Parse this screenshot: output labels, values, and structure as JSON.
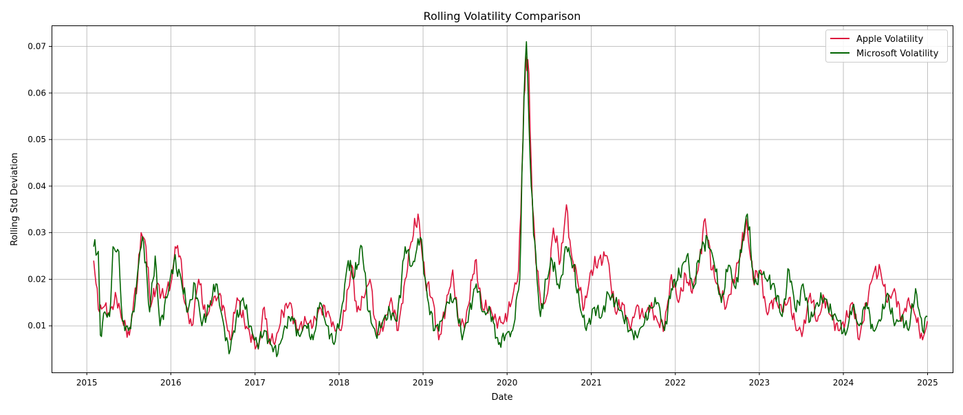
{
  "chart_data": {
    "type": "line",
    "title": "Rolling Volatility Comparison",
    "xlabel": "Date",
    "ylabel": "Rolling Std Deviation",
    "xlim": [
      "2014-08-01",
      "2025-04-20"
    ],
    "ylim": [
      0.0,
      0.0745
    ],
    "x_ticks": [
      "2015",
      "2016",
      "2017",
      "2018",
      "2019",
      "2020",
      "2021",
      "2022",
      "2023",
      "2024",
      "2025"
    ],
    "y_ticks": [
      "0.01",
      "0.02",
      "0.03",
      "0.04",
      "0.05",
      "0.06",
      "0.07"
    ],
    "grid": true,
    "legend_position": "upper right",
    "series": [
      {
        "name": "Apple Volatility",
        "color": "#DC143C",
        "points": [
          [
            "2015-01-31",
            0.024
          ],
          [
            "2015-02-10",
            0.019
          ],
          [
            "2015-02-25",
            0.013
          ],
          [
            "2015-03-15",
            0.014
          ],
          [
            "2015-04-10",
            0.013
          ],
          [
            "2015-05-10",
            0.016
          ],
          [
            "2015-06-05",
            0.011
          ],
          [
            "2015-07-05",
            0.008
          ],
          [
            "2015-07-25",
            0.016
          ],
          [
            "2015-08-10",
            0.02
          ],
          [
            "2015-08-25",
            0.03
          ],
          [
            "2015-09-15",
            0.027
          ],
          [
            "2015-10-05",
            0.014
          ],
          [
            "2015-11-01",
            0.019
          ],
          [
            "2015-12-01",
            0.016
          ],
          [
            "2016-01-05",
            0.02
          ],
          [
            "2016-01-20",
            0.027
          ],
          [
            "2016-02-10",
            0.025
          ],
          [
            "2016-03-01",
            0.015
          ],
          [
            "2016-04-01",
            0.01
          ],
          [
            "2016-05-01",
            0.02
          ],
          [
            "2016-06-01",
            0.012
          ],
          [
            "2016-07-01",
            0.015
          ],
          [
            "2016-08-01",
            0.017
          ],
          [
            "2016-08-25",
            0.012
          ],
          [
            "2016-09-15",
            0.007
          ],
          [
            "2016-10-15",
            0.016
          ],
          [
            "2016-11-15",
            0.011
          ],
          [
            "2016-12-10",
            0.008
          ],
          [
            "2017-01-15",
            0.005
          ],
          [
            "2017-02-10",
            0.014
          ],
          [
            "2017-03-01",
            0.007
          ],
          [
            "2017-04-01",
            0.007
          ],
          [
            "2017-05-01",
            0.013
          ],
          [
            "2017-06-01",
            0.015
          ],
          [
            "2017-07-01",
            0.009
          ],
          [
            "2017-08-10",
            0.011
          ],
          [
            "2017-09-10",
            0.01
          ],
          [
            "2017-10-10",
            0.014
          ],
          [
            "2017-11-10",
            0.013
          ],
          [
            "2017-12-10",
            0.01
          ],
          [
            "2018-01-10",
            0.009
          ],
          [
            "2018-02-10",
            0.018
          ],
          [
            "2018-02-25",
            0.023
          ],
          [
            "2018-03-20",
            0.013
          ],
          [
            "2018-04-20",
            0.016
          ],
          [
            "2018-05-15",
            0.02
          ],
          [
            "2018-06-15",
            0.008
          ],
          [
            "2018-07-15",
            0.01
          ],
          [
            "2018-08-15",
            0.016
          ],
          [
            "2018-09-15",
            0.009
          ],
          [
            "2018-10-15",
            0.02
          ],
          [
            "2018-11-10",
            0.028
          ],
          [
            "2018-12-10",
            0.034
          ],
          [
            "2019-01-10",
            0.02
          ],
          [
            "2019-02-10",
            0.016
          ],
          [
            "2019-03-10",
            0.007
          ],
          [
            "2019-04-10",
            0.014
          ],
          [
            "2019-05-10",
            0.022
          ],
          [
            "2019-06-05",
            0.01
          ],
          [
            "2019-07-05",
            0.011
          ],
          [
            "2019-08-15",
            0.024
          ],
          [
            "2019-09-15",
            0.014
          ],
          [
            "2019-10-15",
            0.014
          ],
          [
            "2019-11-15",
            0.011
          ],
          [
            "2019-12-20",
            0.011
          ],
          [
            "2020-01-20",
            0.015
          ],
          [
            "2020-02-20",
            0.022
          ],
          [
            "2020-03-10",
            0.05
          ],
          [
            "2020-03-22",
            0.068
          ],
          [
            "2020-04-05",
            0.064
          ],
          [
            "2020-04-20",
            0.036
          ],
          [
            "2020-05-10",
            0.022
          ],
          [
            "2020-06-01",
            0.014
          ],
          [
            "2020-06-25",
            0.017
          ],
          [
            "2020-07-20",
            0.031
          ],
          [
            "2020-08-20",
            0.024
          ],
          [
            "2020-09-15",
            0.036
          ],
          [
            "2020-10-05",
            0.026
          ],
          [
            "2020-11-01",
            0.02
          ],
          [
            "2020-12-01",
            0.014
          ],
          [
            "2021-01-01",
            0.022
          ],
          [
            "2021-02-01",
            0.024
          ],
          [
            "2021-03-10",
            0.025
          ],
          [
            "2021-04-15",
            0.013
          ],
          [
            "2021-05-15",
            0.015
          ],
          [
            "2021-06-20",
            0.009
          ],
          [
            "2021-07-15",
            0.014
          ],
          [
            "2021-08-15",
            0.012
          ],
          [
            "2021-09-15",
            0.014
          ],
          [
            "2021-10-15",
            0.011
          ],
          [
            "2021-11-15",
            0.01
          ],
          [
            "2021-12-15",
            0.021
          ],
          [
            "2022-01-15",
            0.015
          ],
          [
            "2022-02-15",
            0.021
          ],
          [
            "2022-03-15",
            0.017
          ],
          [
            "2022-04-15",
            0.024
          ],
          [
            "2022-05-10",
            0.033
          ],
          [
            "2022-06-10",
            0.022
          ],
          [
            "2022-07-10",
            0.018
          ],
          [
            "2022-08-10",
            0.014
          ],
          [
            "2022-09-10",
            0.02
          ],
          [
            "2022-10-10",
            0.025
          ],
          [
            "2022-11-05",
            0.033
          ],
          [
            "2022-12-05",
            0.02
          ],
          [
            "2023-01-05",
            0.022
          ],
          [
            "2023-02-01",
            0.013
          ],
          [
            "2023-03-10",
            0.016
          ],
          [
            "2023-04-10",
            0.013
          ],
          [
            "2023-05-10",
            0.016
          ],
          [
            "2023-06-10",
            0.009
          ],
          [
            "2023-07-10",
            0.009
          ],
          [
            "2023-08-10",
            0.017
          ],
          [
            "2023-09-10",
            0.011
          ],
          [
            "2023-10-10",
            0.016
          ],
          [
            "2023-11-10",
            0.012
          ],
          [
            "2023-12-10",
            0.009
          ],
          [
            "2024-01-10",
            0.011
          ],
          [
            "2024-02-10",
            0.015
          ],
          [
            "2024-03-10",
            0.007
          ],
          [
            "2024-04-10",
            0.015
          ],
          [
            "2024-05-10",
            0.021
          ],
          [
            "2024-06-10",
            0.022
          ],
          [
            "2024-07-10",
            0.015
          ],
          [
            "2024-08-10",
            0.018
          ],
          [
            "2024-09-10",
            0.011
          ],
          [
            "2024-10-10",
            0.016
          ],
          [
            "2024-11-10",
            0.012
          ],
          [
            "2024-12-10",
            0.007
          ],
          [
            "2024-12-31",
            0.011
          ]
        ]
      },
      {
        "name": "Microsoft Volatility",
        "color": "#006400",
        "points": [
          [
            "2015-01-31",
            0.027
          ],
          [
            "2015-02-20",
            0.026
          ],
          [
            "2015-03-01",
            0.008
          ],
          [
            "2015-03-20",
            0.013
          ],
          [
            "2015-04-10",
            0.012
          ],
          [
            "2015-04-25",
            0.027
          ],
          [
            "2015-05-20",
            0.026
          ],
          [
            "2015-06-05",
            0.011
          ],
          [
            "2015-07-01",
            0.009
          ],
          [
            "2015-07-25",
            0.013
          ],
          [
            "2015-08-20",
            0.026
          ],
          [
            "2015-09-05",
            0.028
          ],
          [
            "2015-10-01",
            0.013
          ],
          [
            "2015-10-25",
            0.025
          ],
          [
            "2015-11-15",
            0.01
          ],
          [
            "2015-12-15",
            0.016
          ],
          [
            "2016-01-15",
            0.024
          ],
          [
            "2016-02-15",
            0.02
          ],
          [
            "2016-03-15",
            0.013
          ],
          [
            "2016-04-15",
            0.019
          ],
          [
            "2016-05-15",
            0.01
          ],
          [
            "2016-06-15",
            0.014
          ],
          [
            "2016-07-15",
            0.019
          ],
          [
            "2016-08-15",
            0.011
          ],
          [
            "2016-09-10",
            0.004
          ],
          [
            "2016-10-10",
            0.011
          ],
          [
            "2016-11-10",
            0.016
          ],
          [
            "2016-12-10",
            0.01
          ],
          [
            "2017-01-10",
            0.006
          ],
          [
            "2017-02-10",
            0.009
          ],
          [
            "2017-03-10",
            0.006
          ],
          [
            "2017-04-10",
            0.004
          ],
          [
            "2017-05-10",
            0.01
          ],
          [
            "2017-06-10",
            0.012
          ],
          [
            "2017-07-10",
            0.008
          ],
          [
            "2017-08-10",
            0.01
          ],
          [
            "2017-09-10",
            0.007
          ],
          [
            "2017-10-10",
            0.015
          ],
          [
            "2017-11-10",
            0.01
          ],
          [
            "2017-12-10",
            0.006
          ],
          [
            "2018-01-10",
            0.013
          ],
          [
            "2018-02-10",
            0.024
          ],
          [
            "2018-03-05",
            0.02
          ],
          [
            "2018-04-10",
            0.027
          ],
          [
            "2018-05-10",
            0.013
          ],
          [
            "2018-06-10",
            0.008
          ],
          [
            "2018-07-10",
            0.011
          ],
          [
            "2018-08-10",
            0.013
          ],
          [
            "2018-09-10",
            0.011
          ],
          [
            "2018-10-15",
            0.027
          ],
          [
            "2018-11-15",
            0.023
          ],
          [
            "2018-12-20",
            0.029
          ],
          [
            "2019-01-20",
            0.016
          ],
          [
            "2019-02-20",
            0.009
          ],
          [
            "2019-03-20",
            0.011
          ],
          [
            "2019-04-20",
            0.015
          ],
          [
            "2019-05-20",
            0.016
          ],
          [
            "2019-06-20",
            0.007
          ],
          [
            "2019-07-20",
            0.013
          ],
          [
            "2019-08-20",
            0.019
          ],
          [
            "2019-09-20",
            0.013
          ],
          [
            "2019-10-20",
            0.013
          ],
          [
            "2019-11-25",
            0.006
          ],
          [
            "2019-12-25",
            0.008
          ],
          [
            "2020-01-25",
            0.009
          ],
          [
            "2020-02-25",
            0.02
          ],
          [
            "2020-03-15",
            0.06
          ],
          [
            "2020-03-25",
            0.071
          ],
          [
            "2020-04-15",
            0.04
          ],
          [
            "2020-05-10",
            0.02
          ],
          [
            "2020-05-25",
            0.012
          ],
          [
            "2020-06-20",
            0.02
          ],
          [
            "2020-07-15",
            0.024
          ],
          [
            "2020-08-15",
            0.018
          ],
          [
            "2020-09-15",
            0.027
          ],
          [
            "2020-10-15",
            0.023
          ],
          [
            "2020-11-10",
            0.015
          ],
          [
            "2020-12-10",
            0.009
          ],
          [
            "2021-01-15",
            0.014
          ],
          [
            "2021-02-15",
            0.012
          ],
          [
            "2021-03-15",
            0.017
          ],
          [
            "2021-04-15",
            0.015
          ],
          [
            "2021-05-15",
            0.013
          ],
          [
            "2021-06-15",
            0.009
          ],
          [
            "2021-07-15",
            0.008
          ],
          [
            "2021-08-15",
            0.01
          ],
          [
            "2021-09-15",
            0.014
          ],
          [
            "2021-10-15",
            0.015
          ],
          [
            "2021-11-15",
            0.009
          ],
          [
            "2021-12-15",
            0.018
          ],
          [
            "2022-01-20",
            0.021
          ],
          [
            "2022-02-20",
            0.025
          ],
          [
            "2022-03-20",
            0.018
          ],
          [
            "2022-04-20",
            0.026
          ],
          [
            "2022-05-20",
            0.029
          ],
          [
            "2022-06-20",
            0.023
          ],
          [
            "2022-07-20",
            0.015
          ],
          [
            "2022-08-20",
            0.023
          ],
          [
            "2022-09-20",
            0.018
          ],
          [
            "2022-10-20",
            0.028
          ],
          [
            "2022-11-10",
            0.034
          ],
          [
            "2022-12-10",
            0.019
          ],
          [
            "2023-01-10",
            0.021
          ],
          [
            "2023-02-10",
            0.02
          ],
          [
            "2023-03-10",
            0.018
          ],
          [
            "2023-04-10",
            0.012
          ],
          [
            "2023-05-10",
            0.022
          ],
          [
            "2023-06-10",
            0.013
          ],
          [
            "2023-07-10",
            0.019
          ],
          [
            "2023-08-10",
            0.011
          ],
          [
            "2023-09-10",
            0.015
          ],
          [
            "2023-10-10",
            0.016
          ],
          [
            "2023-11-10",
            0.013
          ],
          [
            "2023-12-10",
            0.011
          ],
          [
            "2024-01-10",
            0.008
          ],
          [
            "2024-02-10",
            0.014
          ],
          [
            "2024-03-10",
            0.01
          ],
          [
            "2024-04-10",
            0.015
          ],
          [
            "2024-05-10",
            0.009
          ],
          [
            "2024-06-10",
            0.011
          ],
          [
            "2024-07-10",
            0.017
          ],
          [
            "2024-08-10",
            0.01
          ],
          [
            "2024-09-10",
            0.012
          ],
          [
            "2024-10-10",
            0.009
          ],
          [
            "2024-11-10",
            0.018
          ],
          [
            "2024-12-10",
            0.009
          ],
          [
            "2024-12-31",
            0.012
          ]
        ]
      }
    ]
  }
}
